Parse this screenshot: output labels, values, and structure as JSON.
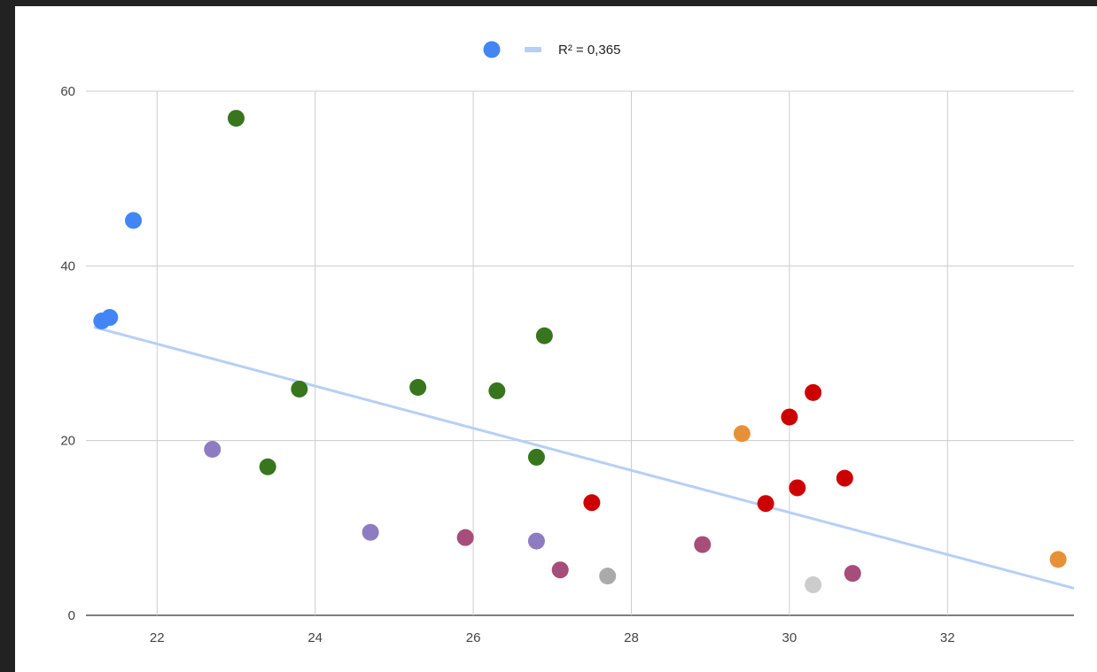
{
  "chart_data": {
    "type": "scatter",
    "title": "",
    "xlabel": "",
    "ylabel": "",
    "xlim": [
      21.1,
      33.6
    ],
    "ylim": [
      0,
      60
    ],
    "x_ticks": [
      "22",
      "24",
      "26",
      "28",
      "30",
      "32"
    ],
    "y_ticks": [
      "0",
      "20",
      "40",
      "60"
    ],
    "grid": true,
    "legend": {
      "placement": "top-center",
      "marker_color": "#4285f4",
      "trendline_label": "R² = 0,365"
    },
    "trendline": {
      "type": "linear",
      "r_squared": "0,365",
      "color": "#b7cff5",
      "points": [
        [
          21.2,
          33.0
        ],
        [
          33.6,
          3.1
        ]
      ]
    },
    "points": [
      {
        "x": 21.3,
        "y": 33.7,
        "color": "#4285f4"
      },
      {
        "x": 21.4,
        "y": 34.1,
        "color": "#4285f4"
      },
      {
        "x": 21.7,
        "y": 45.2,
        "color": "#4285f4"
      },
      {
        "x": 22.7,
        "y": 19.0,
        "color": "#8e7cc3"
      },
      {
        "x": 23.0,
        "y": 56.9,
        "color": "#38761d"
      },
      {
        "x": 23.4,
        "y": 17.0,
        "color": "#38761d"
      },
      {
        "x": 23.8,
        "y": 25.9,
        "color": "#38761d"
      },
      {
        "x": 24.7,
        "y": 9.5,
        "color": "#8e7cc3"
      },
      {
        "x": 25.3,
        "y": 26.1,
        "color": "#38761d"
      },
      {
        "x": 25.9,
        "y": 8.9,
        "color": "#a64d79"
      },
      {
        "x": 26.3,
        "y": 25.7,
        "color": "#38761d"
      },
      {
        "x": 26.8,
        "y": 18.1,
        "color": "#38761d"
      },
      {
        "x": 26.8,
        "y": 8.5,
        "color": "#8e7cc3"
      },
      {
        "x": 26.9,
        "y": 32.0,
        "color": "#38761d"
      },
      {
        "x": 27.1,
        "y": 5.2,
        "color": "#a64d79"
      },
      {
        "x": 27.5,
        "y": 12.9,
        "color": "#cc0000"
      },
      {
        "x": 27.7,
        "y": 4.5,
        "color": "#aaaaaa"
      },
      {
        "x": 28.9,
        "y": 8.1,
        "color": "#a64d79"
      },
      {
        "x": 29.4,
        "y": 20.8,
        "color": "#e69138"
      },
      {
        "x": 29.7,
        "y": 12.8,
        "color": "#cc0000"
      },
      {
        "x": 30.0,
        "y": 22.7,
        "color": "#cc0000"
      },
      {
        "x": 30.1,
        "y": 14.6,
        "color": "#cc0000"
      },
      {
        "x": 30.3,
        "y": 25.5,
        "color": "#cc0000"
      },
      {
        "x": 30.3,
        "y": 3.5,
        "color": "#cccccc"
      },
      {
        "x": 30.7,
        "y": 15.7,
        "color": "#cc0000"
      },
      {
        "x": 30.8,
        "y": 4.8,
        "color": "#a64d79"
      },
      {
        "x": 33.4,
        "y": 6.4,
        "color": "#e69138"
      }
    ]
  }
}
